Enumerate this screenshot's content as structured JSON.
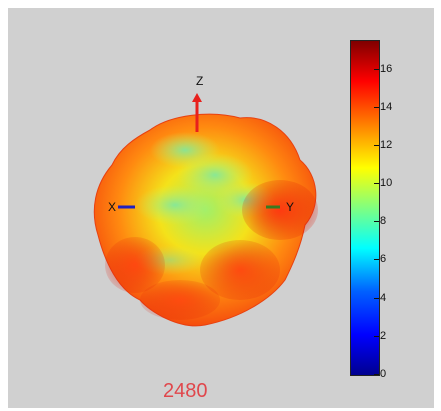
{
  "figure": {
    "frame_number": "2480",
    "axes": {
      "x": "X",
      "y": "Y",
      "z": "Z"
    },
    "colorbar": {
      "ticks": [
        "0",
        "2",
        "4",
        "6",
        "8",
        "10",
        "12",
        "14",
        "16"
      ],
      "range": [
        0,
        17.5
      ],
      "colormap": "jet"
    },
    "colors": {
      "background": "#d0d0d0",
      "frame_label": "#e0474c",
      "z_arrow": "#e8201c",
      "x_marker": "#2020c0",
      "y_marker": "#3a7a20"
    },
    "icons": [
      "z-axis-arrow-icon",
      "x-axis-marker-icon",
      "y-axis-marker-icon"
    ]
  }
}
